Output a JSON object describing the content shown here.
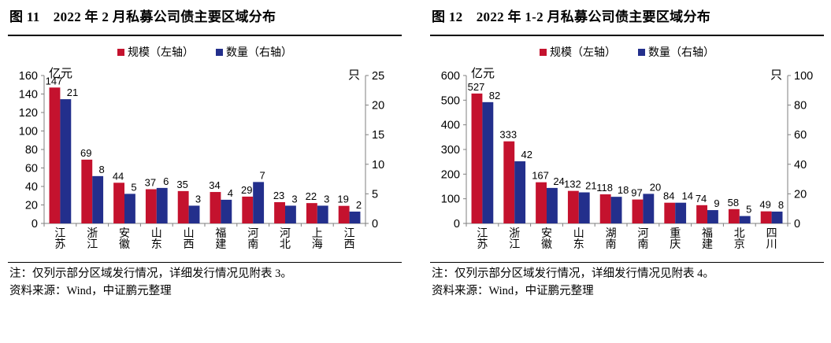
{
  "colors": {
    "scale": "#C4122E",
    "count": "#232F8C",
    "axis": "#7f7f7f",
    "text": "#000000"
  },
  "panels": [
    {
      "title": "图 11　2022 年 2 月私募公司债主要区域分布",
      "note": "注：仅列示部分区域发行情况，详细发行情况见附表 3。",
      "source": "资料来源：Wind，中证鹏元整理"
    },
    {
      "title": "图 12　2022 年 1-2 月私募公司债主要区域分布",
      "note": "注：仅列示部分区域发行情况，详细发行情况见附表 4。",
      "source": "资料来源：Wind，中证鹏元整理"
    }
  ],
  "chart_data": [
    {
      "type": "bar",
      "title": "2022年2月私募公司债主要区域分布",
      "categories": [
        "江苏",
        "浙江",
        "安徽",
        "山东",
        "山西",
        "福建",
        "河南",
        "河北",
        "上海",
        "江西"
      ],
      "series": [
        {
          "name": "规模（左轴）",
          "axis": "left",
          "values": [
            147,
            69,
            44,
            37,
            35,
            34,
            29,
            23,
            22,
            19
          ]
        },
        {
          "name": "数量（右轴）",
          "axis": "right",
          "values": [
            21,
            8,
            5,
            6,
            3,
            4,
            7,
            3,
            3,
            2
          ]
        }
      ],
      "left_axis": {
        "unit": "亿元",
        "min": 0,
        "max": 160,
        "step": 20
      },
      "right_axis": {
        "unit": "只",
        "min": 0,
        "max": 25,
        "step": 5
      },
      "legend_position": "top",
      "grid": false
    },
    {
      "type": "bar",
      "title": "2022年1-2月私募公司债主要区域分布",
      "categories": [
        "江苏",
        "浙江",
        "安徽",
        "山东",
        "湖南",
        "河南",
        "重庆",
        "福建",
        "北京",
        "四川"
      ],
      "series": [
        {
          "name": "规模（左轴）",
          "axis": "left",
          "values": [
            527,
            333,
            167,
            132,
            118,
            97,
            84,
            74,
            58,
            49
          ]
        },
        {
          "name": "数量（右轴）",
          "axis": "right",
          "values": [
            82,
            42,
            24,
            21,
            18,
            20,
            14,
            9,
            5,
            8
          ]
        }
      ],
      "left_axis": {
        "unit": "亿元",
        "min": 0,
        "max": 600,
        "step": 100
      },
      "right_axis": {
        "unit": "只",
        "min": 0,
        "max": 100,
        "step": 20
      },
      "legend_position": "top",
      "grid": false
    }
  ]
}
